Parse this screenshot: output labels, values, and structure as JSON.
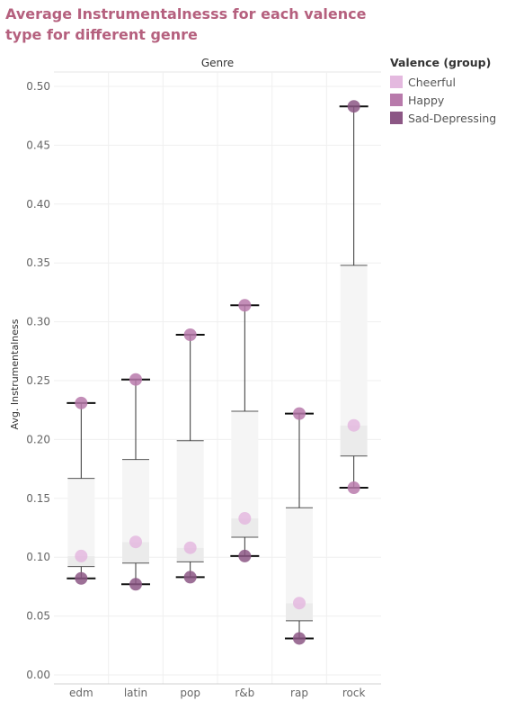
{
  "title": "Average Instrumentalnesss for each valence type for different genre",
  "chart_data": {
    "type": "box-dot",
    "header": "Genre",
    "ylabel": "Avg. Instrumentalness",
    "ylim": [
      0,
      0.5
    ],
    "yticks": [
      "0.00",
      "0.05",
      "0.10",
      "0.15",
      "0.20",
      "0.25",
      "0.30",
      "0.35",
      "0.40",
      "0.45",
      "0.50"
    ],
    "categories": [
      "edm",
      "latin",
      "pop",
      "r&b",
      "rap",
      "rock"
    ],
    "boxes": [
      {
        "min": 0.082,
        "q1": 0.092,
        "median": 0.101,
        "q3": 0.167,
        "max": 0.231
      },
      {
        "min": 0.077,
        "q1": 0.095,
        "median": 0.113,
        "q3": 0.183,
        "max": 0.251
      },
      {
        "min": 0.083,
        "q1": 0.096,
        "median": 0.108,
        "q3": 0.199,
        "max": 0.289
      },
      {
        "min": 0.101,
        "q1": 0.117,
        "median": 0.133,
        "q3": 0.224,
        "max": 0.314
      },
      {
        "min": 0.031,
        "q1": 0.046,
        "median": 0.061,
        "q3": 0.142,
        "max": 0.222
      },
      {
        "min": 0.159,
        "q1": 0.186,
        "median": 0.212,
        "q3": 0.348,
        "max": 0.483
      }
    ],
    "series": [
      {
        "name": "Cheerful",
        "color": "#e4b9df",
        "values": [
          0.101,
          0.113,
          0.108,
          0.133,
          0.061,
          0.212
        ]
      },
      {
        "name": "Happy",
        "color": "#b87aab",
        "values": [
          0.231,
          0.251,
          0.289,
          0.314,
          0.222,
          0.159
        ]
      },
      {
        "name": "Sad-Depressing",
        "color": "#8c5785",
        "values": [
          0.082,
          0.077,
          0.083,
          0.101,
          0.031,
          0.483
        ]
      }
    ],
    "legend": {
      "title": "Valence (group)",
      "placement": "right"
    },
    "grid": true
  }
}
